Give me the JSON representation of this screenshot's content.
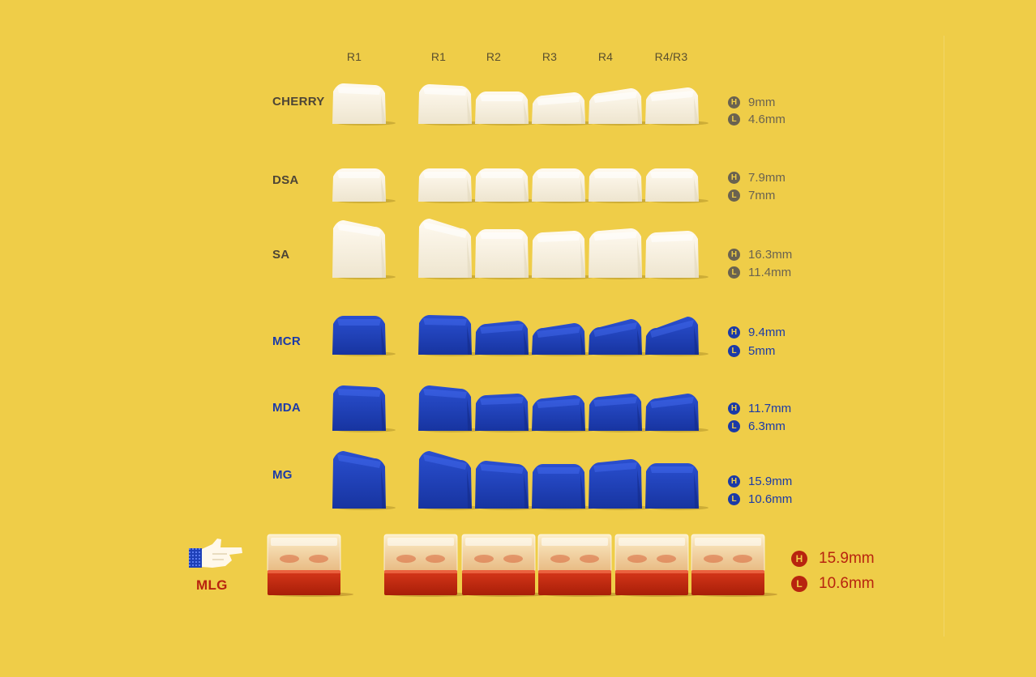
{
  "columns": [
    "R1",
    "R1",
    "R2",
    "R3",
    "R4",
    "R4/R3"
  ],
  "profiles": [
    {
      "name": "CHERRY",
      "height": "9mm",
      "length": "4.6mm",
      "color": "white"
    },
    {
      "name": "DSA",
      "height": "7.9mm",
      "length": "7mm",
      "color": "white"
    },
    {
      "name": "SA",
      "height": "16.3mm",
      "length": "11.4mm",
      "color": "white"
    },
    {
      "name": "MCR",
      "height": "9.4mm",
      "length": "5mm",
      "color": "blue"
    },
    {
      "name": "MDA",
      "height": "11.7mm",
      "length": "6.3mm",
      "color": "blue"
    },
    {
      "name": "MG",
      "height": "15.9mm",
      "length": "10.6mm",
      "color": "blue"
    }
  ],
  "mlg": {
    "name": "MLG",
    "height": "15.9mm",
    "length": "10.6mm"
  },
  "badges": {
    "height": "H",
    "length": "L"
  },
  "colors": {
    "background": "#efcd48",
    "white_cap": "#f7f1e1",
    "blue_cap": "#1e40b8",
    "red_cap": "#c42a10",
    "clear_cap": "#f3e6c8"
  },
  "icons": {
    "pointer": "pixel-pointing-hand-icon"
  }
}
